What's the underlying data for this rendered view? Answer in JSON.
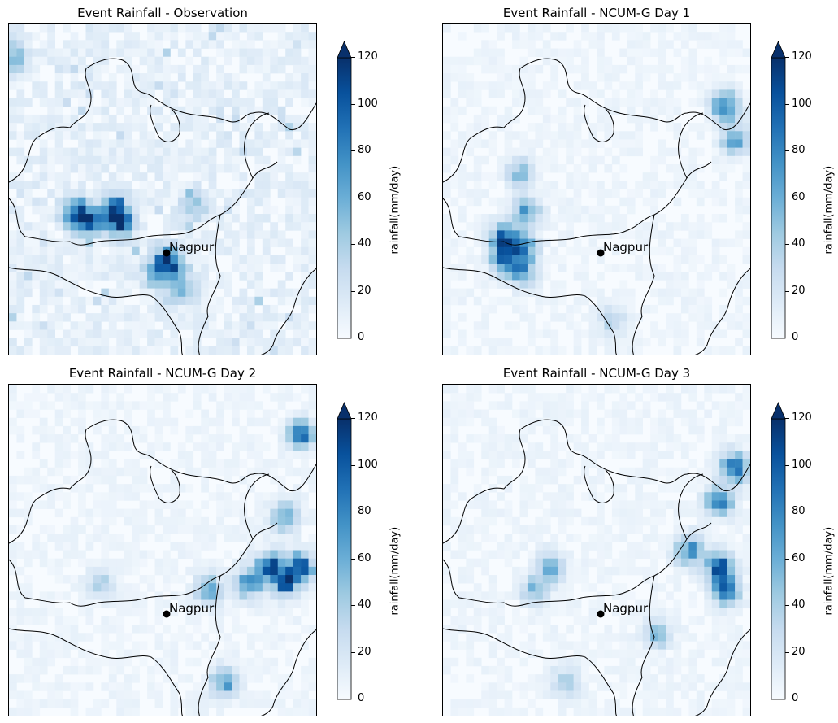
{
  "chart_data": [
    {
      "type": "heatmap",
      "title": "Event Rainfall - Observation",
      "colorbar": {
        "label": "rainfall(mm/day)",
        "ticks": [
          0,
          20,
          40,
          60,
          80,
          100,
          120
        ],
        "range": [
          0,
          120
        ],
        "extend": "max",
        "colormap": "Blues"
      },
      "marker": {
        "label": "Nagpur"
      },
      "hotspots": [
        {
          "x": 0.22,
          "y": 0.57,
          "value": 110
        },
        {
          "x": 0.26,
          "y": 0.6,
          "value": 90
        },
        {
          "x": 0.34,
          "y": 0.56,
          "value": 100
        },
        {
          "x": 0.36,
          "y": 0.6,
          "value": 120
        },
        {
          "x": 0.48,
          "y": 0.75,
          "value": 70
        },
        {
          "x": 0.52,
          "y": 0.72,
          "value": 110
        },
        {
          "x": 0.56,
          "y": 0.8,
          "value": 60
        },
        {
          "x": 0.6,
          "y": 0.55,
          "value": 50
        },
        {
          "x": 0.02,
          "y": 0.1,
          "value": 60
        }
      ]
    },
    {
      "type": "heatmap",
      "title": "Event Rainfall - NCUM-G Day 1",
      "colorbar": {
        "label": "rainfall(mm/day)",
        "ticks": [
          0,
          20,
          40,
          60,
          80,
          100,
          120
        ],
        "range": [
          0,
          120
        ],
        "extend": "max",
        "colormap": "Blues"
      },
      "marker": {
        "label": "Nagpur"
      },
      "hotspots": [
        {
          "x": 0.2,
          "y": 0.65,
          "value": 120
        },
        {
          "x": 0.2,
          "y": 0.72,
          "value": 100
        },
        {
          "x": 0.26,
          "y": 0.68,
          "value": 90
        },
        {
          "x": 0.27,
          "y": 0.57,
          "value": 80
        },
        {
          "x": 0.25,
          "y": 0.45,
          "value": 60
        },
        {
          "x": 0.26,
          "y": 0.75,
          "value": 70
        },
        {
          "x": 0.55,
          "y": 0.9,
          "value": 40
        },
        {
          "x": 0.92,
          "y": 0.25,
          "value": 110
        },
        {
          "x": 0.95,
          "y": 0.35,
          "value": 80
        }
      ]
    },
    {
      "type": "heatmap",
      "title": "Event Rainfall - NCUM-G Day 2",
      "colorbar": {
        "label": "rainfall(mm/day)",
        "ticks": [
          0,
          20,
          40,
          60,
          80,
          100,
          120
        ],
        "range": [
          0,
          120
        ],
        "extend": "max",
        "colormap": "Blues"
      },
      "marker": {
        "label": "Nagpur"
      },
      "hotspots": [
        {
          "x": 0.85,
          "y": 0.55,
          "value": 120
        },
        {
          "x": 0.9,
          "y": 0.6,
          "value": 110
        },
        {
          "x": 0.95,
          "y": 0.55,
          "value": 120
        },
        {
          "x": 0.95,
          "y": 0.15,
          "value": 110
        },
        {
          "x": 0.9,
          "y": 0.4,
          "value": 80
        },
        {
          "x": 0.78,
          "y": 0.6,
          "value": 90
        },
        {
          "x": 0.65,
          "y": 0.62,
          "value": 70
        },
        {
          "x": 0.3,
          "y": 0.6,
          "value": 50
        },
        {
          "x": 0.7,
          "y": 0.9,
          "value": 80
        }
      ]
    },
    {
      "type": "heatmap",
      "title": "Event Rainfall - NCUM-G Day 3",
      "colorbar": {
        "label": "rainfall(mm/day)",
        "ticks": [
          0,
          20,
          40,
          60,
          80,
          100,
          120
        ],
        "range": [
          0,
          120
        ],
        "extend": "max",
        "colormap": "Blues"
      },
      "marker": {
        "label": "Nagpur"
      },
      "hotspots": [
        {
          "x": 0.9,
          "y": 0.55,
          "value": 120
        },
        {
          "x": 0.92,
          "y": 0.62,
          "value": 110
        },
        {
          "x": 0.95,
          "y": 0.25,
          "value": 110
        },
        {
          "x": 0.9,
          "y": 0.35,
          "value": 100
        },
        {
          "x": 0.8,
          "y": 0.5,
          "value": 90
        },
        {
          "x": 0.35,
          "y": 0.55,
          "value": 70
        },
        {
          "x": 0.3,
          "y": 0.62,
          "value": 60
        },
        {
          "x": 0.7,
          "y": 0.75,
          "value": 60
        },
        {
          "x": 0.4,
          "y": 0.9,
          "value": 50
        }
      ]
    }
  ]
}
